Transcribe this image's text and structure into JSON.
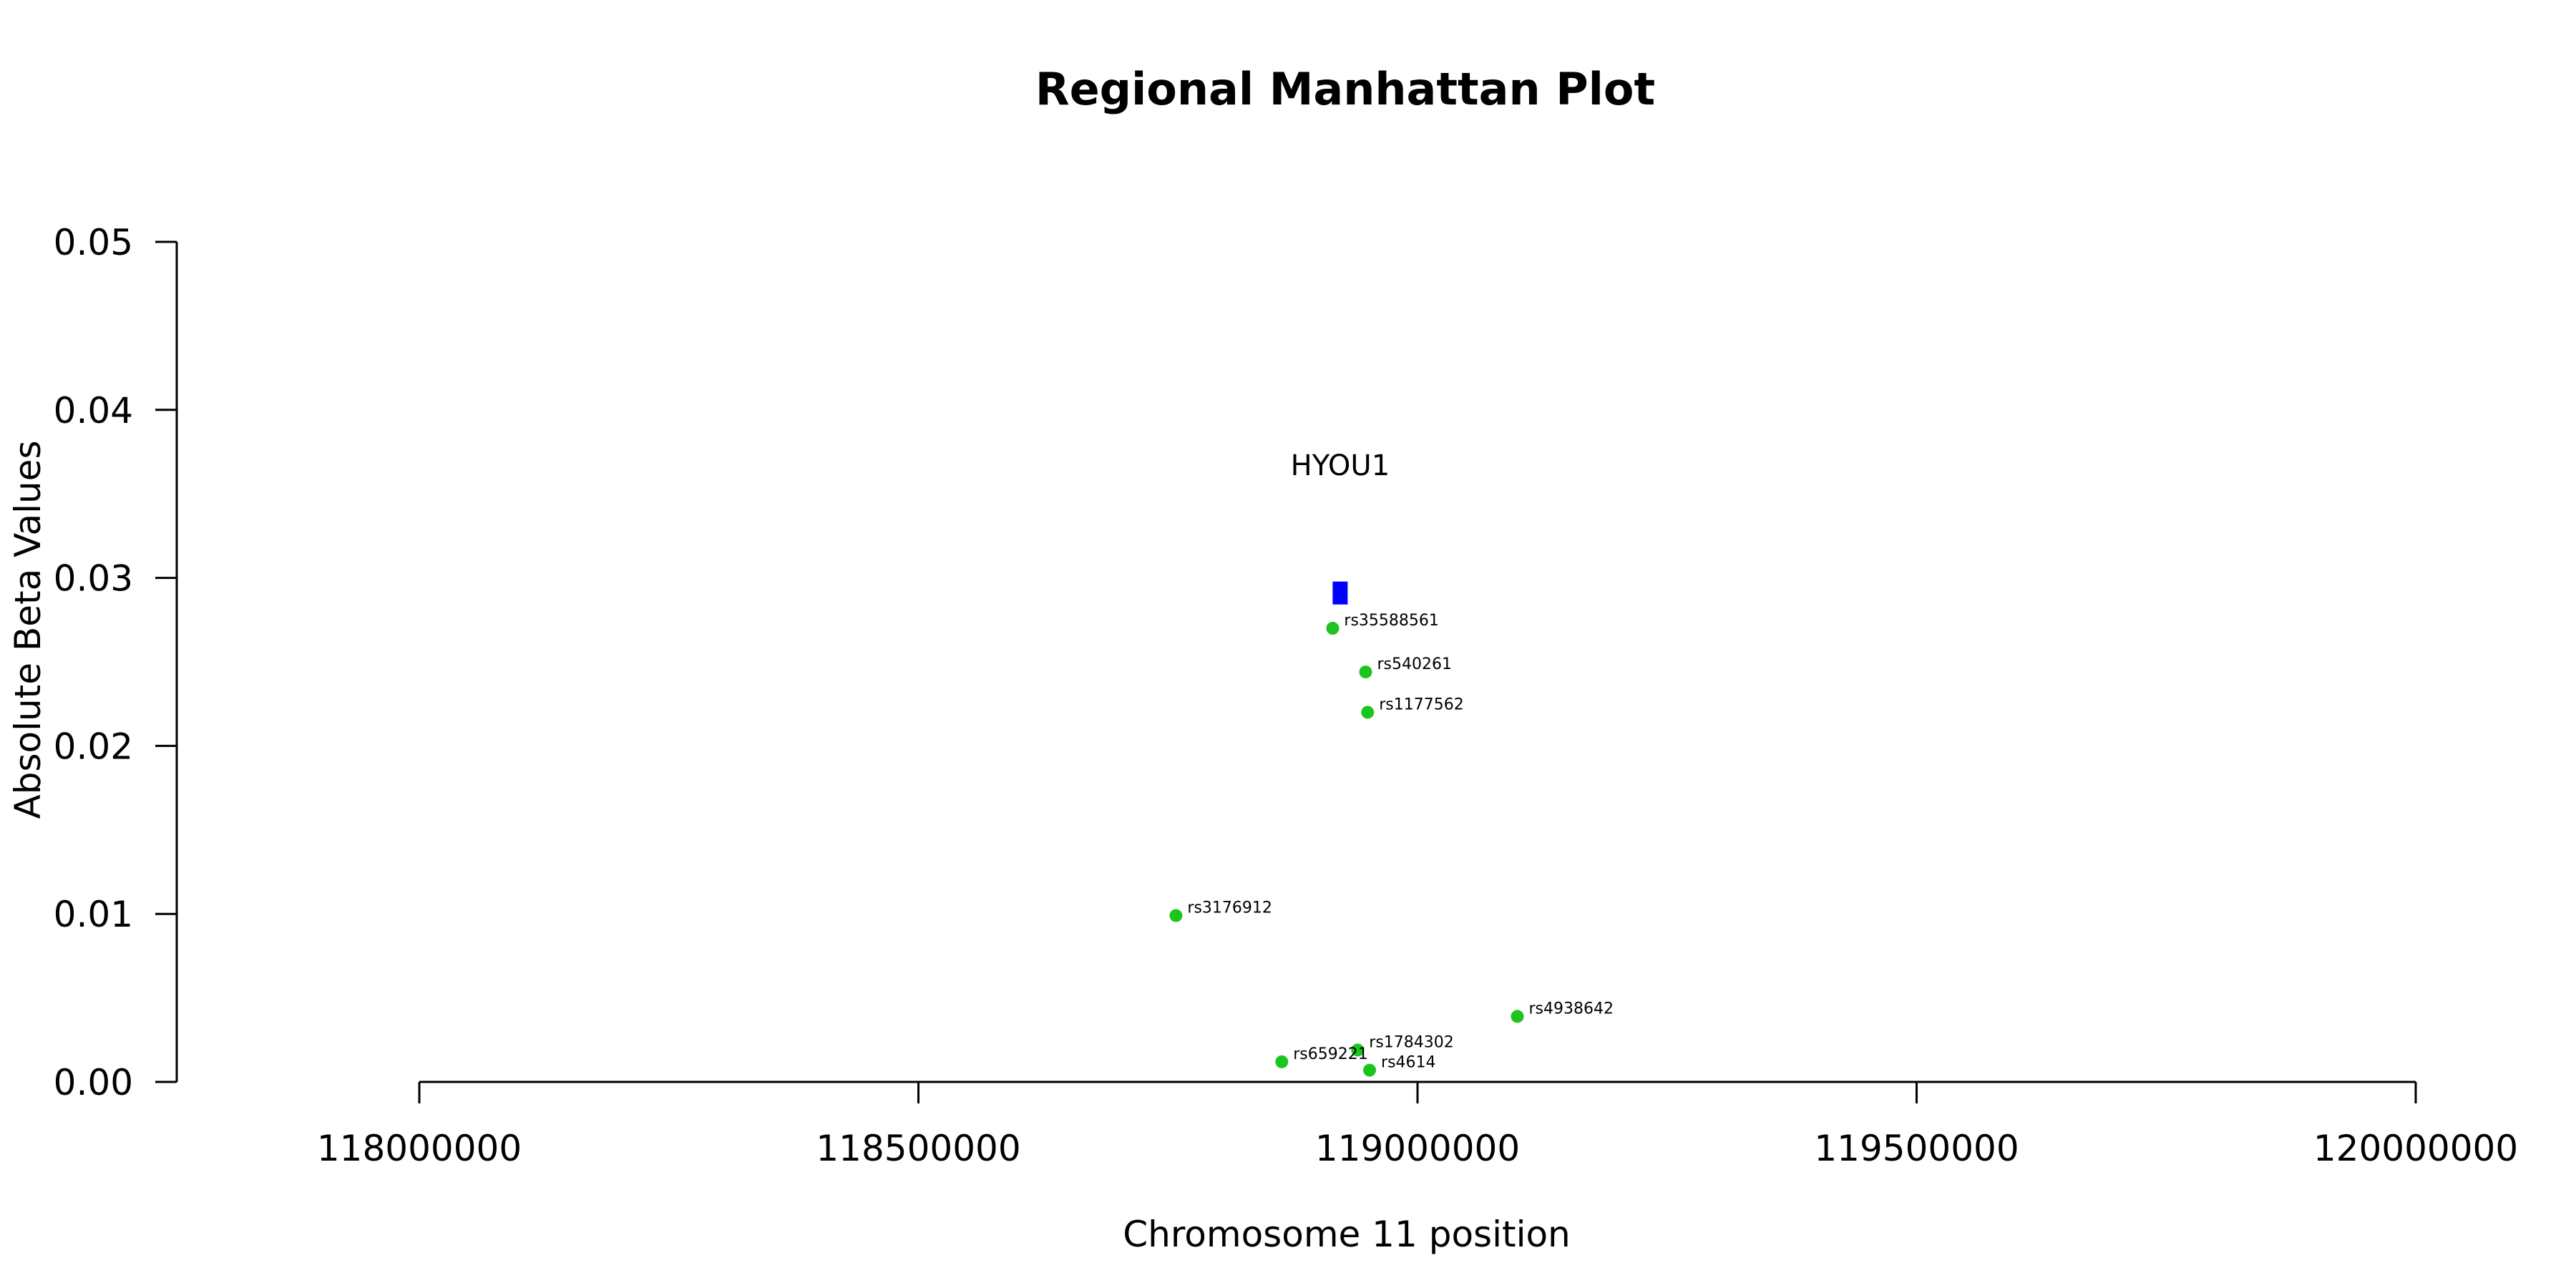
{
  "chart_data": {
    "type": "scatter",
    "title": "Regional Manhattan Plot",
    "xlabel": "Chromosome 11 position",
    "ylabel": "Absolute Beta Values",
    "xlim": [
      118000000,
      120000000
    ],
    "ylim": [
      0,
      0.05
    ],
    "x_ticks": [
      118000000,
      118500000,
      119000000,
      119500000,
      120000000
    ],
    "x_tick_labels": [
      "118000000",
      "118500000",
      "119000000",
      "119500000",
      "120000000"
    ],
    "y_ticks": [
      0,
      0.01,
      0.02,
      0.03,
      0.04,
      0.05
    ],
    "y_tick_labels": [
      "0.00",
      "0.01",
      "0.02",
      "0.03",
      "0.04",
      "0.05"
    ],
    "grid": false,
    "point_color": "#1ec41e",
    "gene_color": "#0000ff",
    "points": [
      {
        "label": "rs35588561",
        "x": 118915000,
        "y": 0.027
      },
      {
        "label": "rs540261",
        "x": 118948000,
        "y": 0.0244
      },
      {
        "label": "rs1177562",
        "x": 118950000,
        "y": 0.022
      },
      {
        "label": "rs3176912",
        "x": 118758000,
        "y": 0.0099
      },
      {
        "label": "rs4938642",
        "x": 119100000,
        "y": 0.0039
      },
      {
        "label": "rs1784302",
        "x": 118940000,
        "y": 0.0019
      },
      {
        "label": "rs659221",
        "x": 118864000,
        "y": 0.0012
      },
      {
        "label": "rs4614",
        "x": 118952000,
        "y": 0.0007
      }
    ],
    "genes": [
      {
        "name": "HYOU1",
        "start": 118915000,
        "end": 118930000,
        "y": 0.0291
      }
    ]
  }
}
